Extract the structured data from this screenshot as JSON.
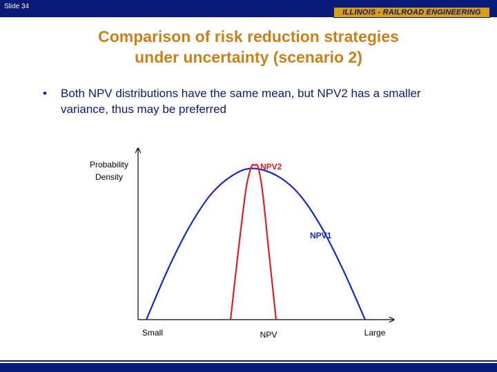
{
  "header": {
    "slide_label": "Slide 34",
    "brand": "ILLINOIS - RAILROAD  ENGINEERING"
  },
  "slide": {
    "title_line1": "Comparison of risk reduction strategies",
    "title_line2": "under uncertainty (scenario 2)",
    "bullets": [
      "Both NPV distributions have the same mean, but NPV2 has a smaller variance, thus may be preferred"
    ]
  },
  "colors": {
    "navy": "#0a1a78",
    "title_orange": "#c9801a",
    "brand_gold": "#d99e12",
    "npv1_blue": "#1428c8",
    "npv2_red": "#e01e1e"
  },
  "chart_data": {
    "type": "line",
    "title": "",
    "xlabel": "NPV",
    "ylabel": "Probability Density",
    "x_tick_labels": {
      "left": "Small",
      "right": "Large"
    },
    "xlim": [
      0,
      100
    ],
    "ylim": [
      0,
      100
    ],
    "grid": false,
    "series": [
      {
        "name": "NPV1",
        "color": "#1428c8",
        "x": [
          0,
          10,
          20,
          30,
          40,
          49,
          60,
          70,
          80,
          90,
          100
        ],
        "y": [
          0,
          33,
          61,
          82,
          94,
          98,
          93,
          81,
          60,
          32,
          0
        ]
      },
      {
        "name": "NPV2",
        "color": "#e01e1e",
        "x": [
          38.5,
          42,
          45.5,
          48,
          49.5,
          51,
          53,
          56,
          59.3
        ],
        "y": [
          0,
          44,
          84,
          99,
          100,
          99,
          84,
          44,
          0
        ]
      }
    ]
  }
}
